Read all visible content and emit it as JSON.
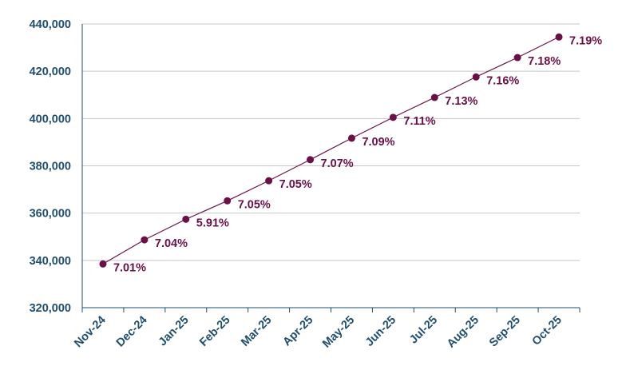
{
  "colors": {
    "axis_text": "#1f4e6e",
    "series": "#6b1046",
    "grid": "#c6c6c6",
    "axis_line": "#1f4e6e"
  },
  "chart_data": {
    "type": "line",
    "title": "",
    "xlabel": "",
    "ylabel": "",
    "ylim": [
      320000,
      440000
    ],
    "yticks": [
      320000,
      340000,
      360000,
      380000,
      400000,
      420000,
      440000
    ],
    "ytick_labels": [
      "320,000",
      "340,000",
      "360,000",
      "380,000",
      "400,000",
      "420,000",
      "440,000"
    ],
    "grid": true,
    "legend": "none",
    "categories": [
      "Nov-24",
      "Dec-24",
      "Jan-25",
      "Feb-25",
      "Mar-25",
      "Apr-25",
      "May-25",
      "Jun-25",
      "Jul-25",
      "Aug-25",
      "Sep-25",
      "Oct-25"
    ],
    "series": [
      {
        "values": [
          338500,
          348700,
          357400,
          365200,
          373700,
          382600,
          391700,
          400500,
          408900,
          417600,
          425800,
          434500
        ],
        "labels": [
          "7.01%",
          "7.04%",
          "5.91%",
          "7.05%",
          "7.05%",
          "7.07%",
          "7.09%",
          "7.11%",
          "7.13%",
          "7.16%",
          "7.18%",
          "7.19%"
        ]
      }
    ]
  }
}
